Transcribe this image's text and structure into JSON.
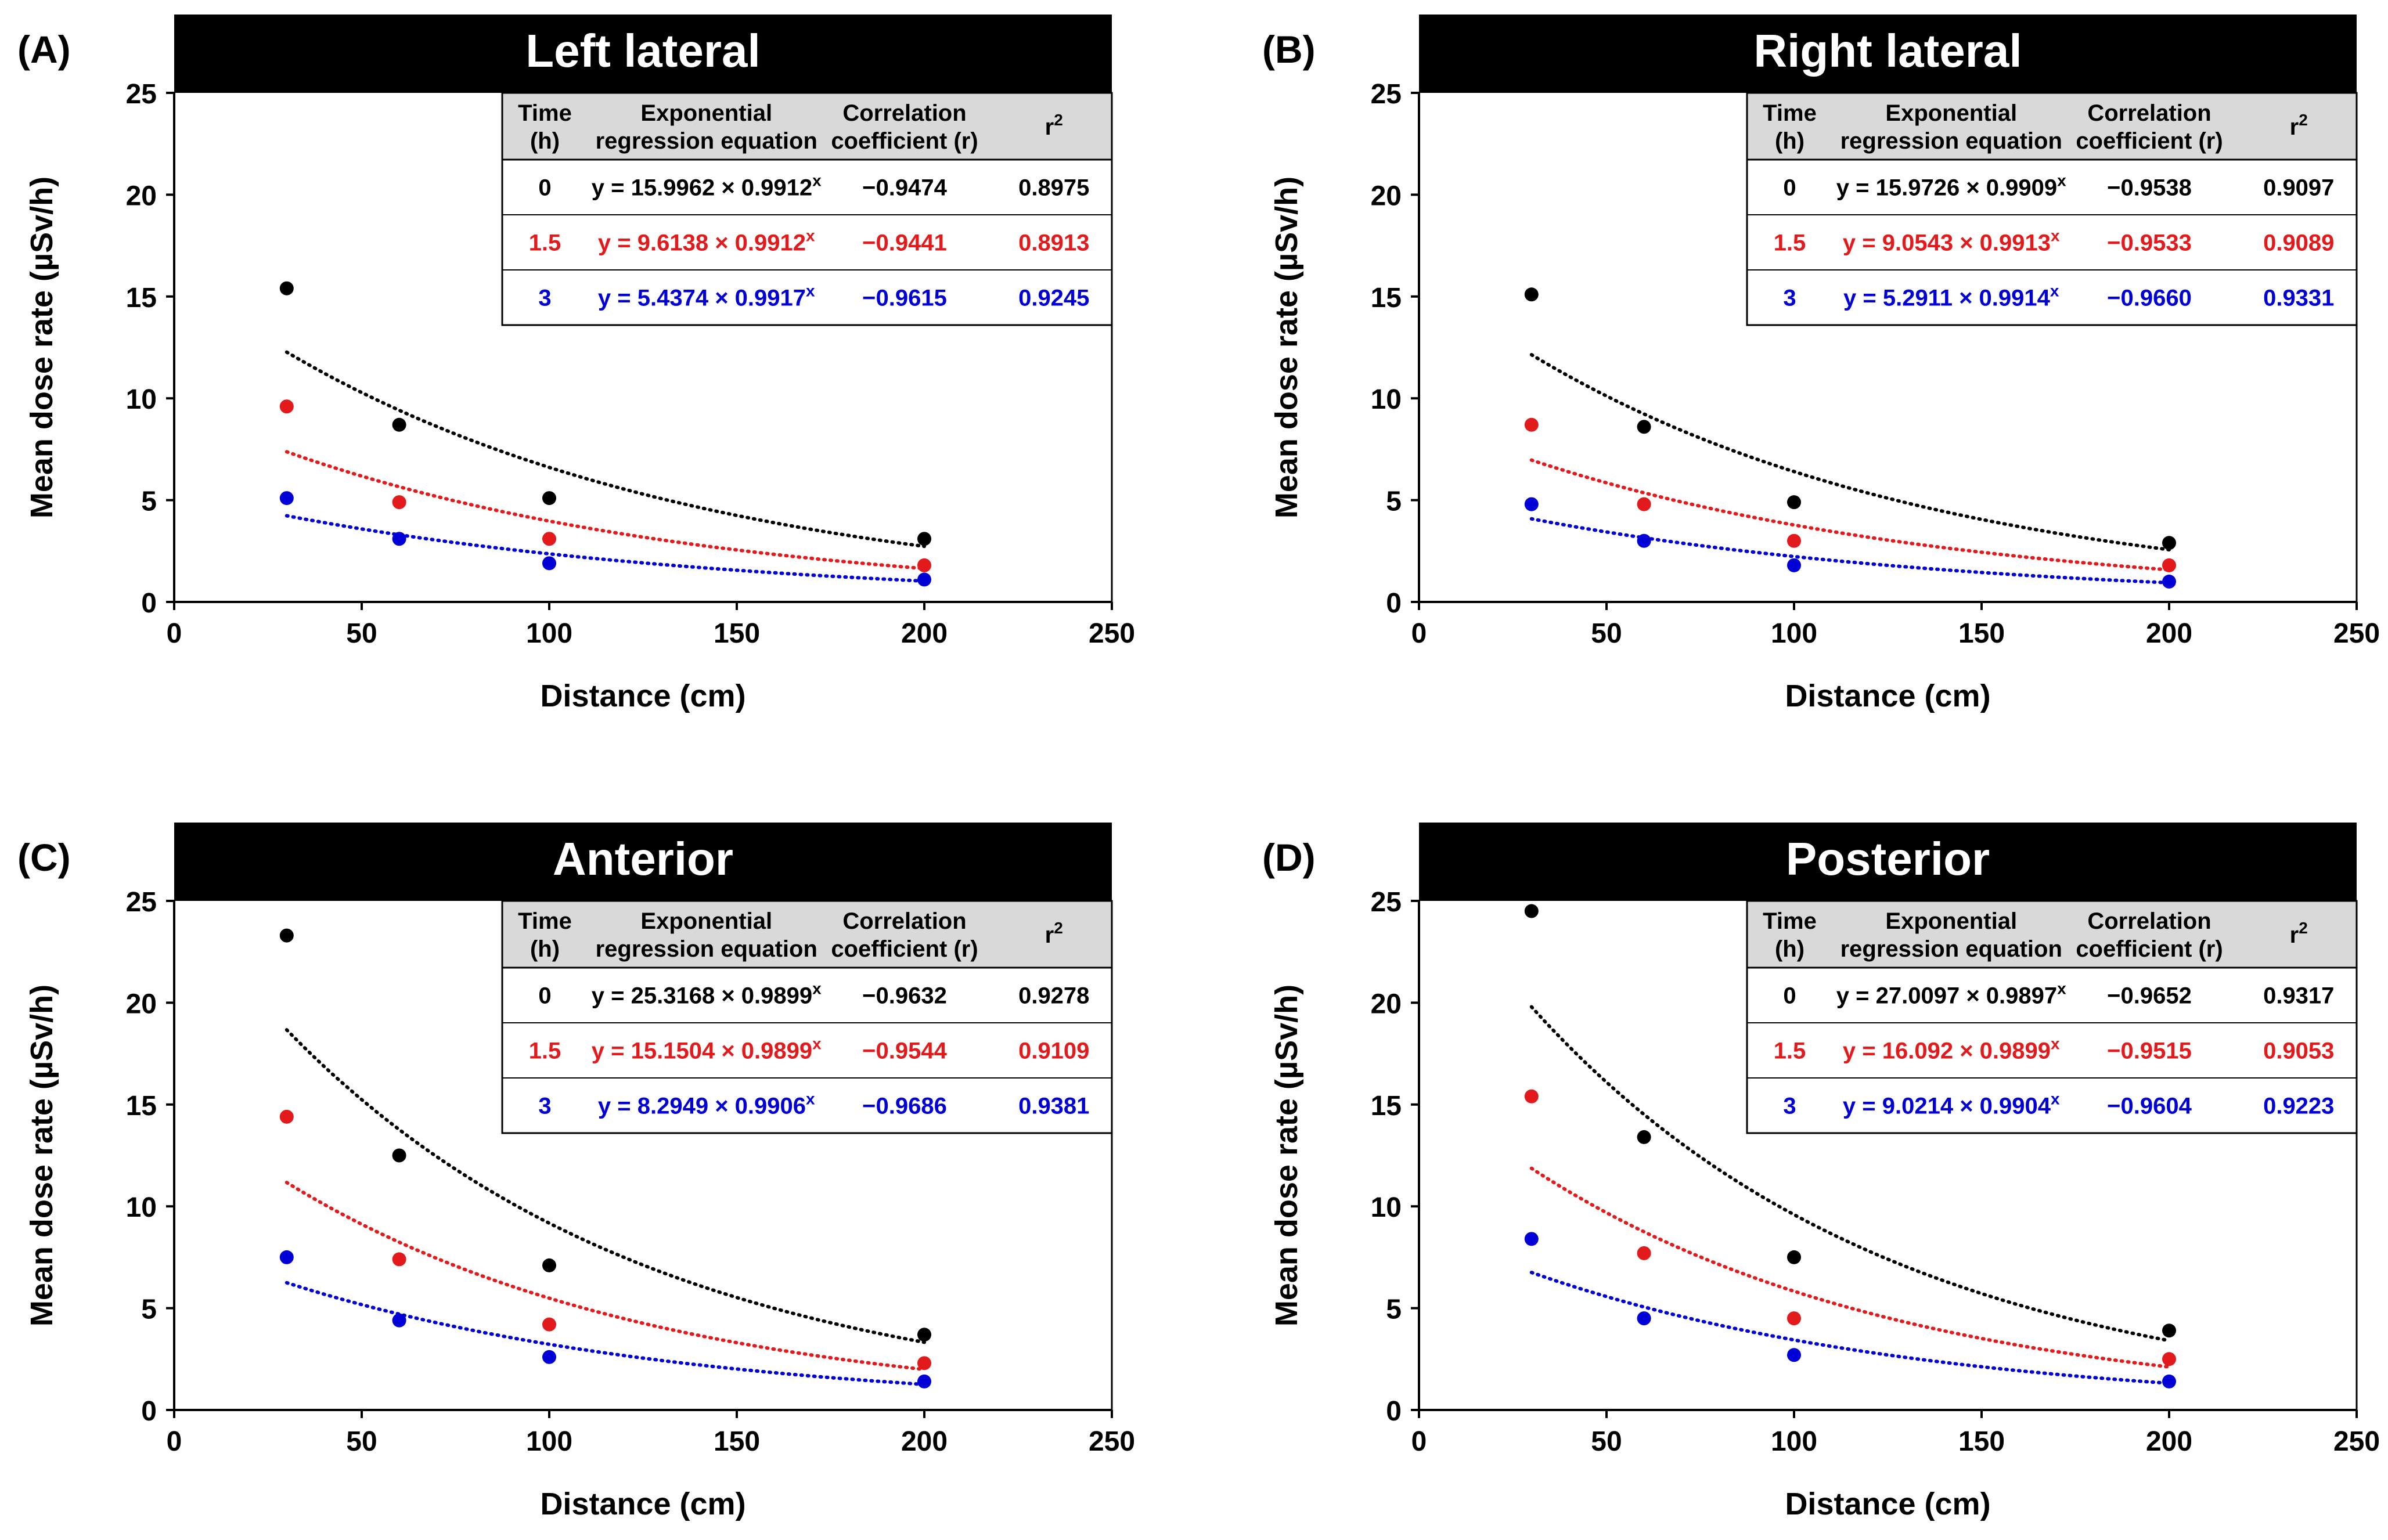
{
  "colors": {
    "t0": "#000000",
    "t1_5": "#e31a1c",
    "t3": "#0000d6",
    "header_bg": "#000000",
    "header_text": "#ffffff",
    "table_head_bg": "#d9d9d9"
  },
  "table_headers": {
    "time_line1": "Time",
    "time_line2": "(h)",
    "eq_line1": "Exponential",
    "eq_line2": "regression equation",
    "corr_line1": "Correlation",
    "corr_line2": "coefficient (r)",
    "r2_base": "r",
    "r2_sup": "2"
  },
  "chart_data": [
    {
      "label": "(A)",
      "title": "Left lateral",
      "type": "scatter",
      "xlabel": "Distance (cm)",
      "ylabel": "Mean dose rate (µSv/h)",
      "xlim": [
        0,
        250
      ],
      "ylim": [
        0,
        25
      ],
      "xticks": [
        "0",
        "50",
        "100",
        "150",
        "200",
        "250"
      ],
      "yticks": [
        "0",
        "5",
        "10",
        "15",
        "20",
        "25"
      ],
      "x": [
        30,
        60,
        100,
        200
      ],
      "series": [
        {
          "name": "0",
          "color": "#000000",
          "values": [
            15.4,
            8.7,
            5.1,
            3.1
          ],
          "fit": {
            "a": 15.9962,
            "b": 0.9912
          },
          "equation_base": "y = 15.9962 × 0.9912",
          "equation_sup": "x",
          "r": "−0.9474",
          "r2": "0.8975"
        },
        {
          "name": "1.5",
          "color": "#e31a1c",
          "values": [
            9.6,
            4.9,
            3.1,
            1.8
          ],
          "fit": {
            "a": 9.6138,
            "b": 0.9912
          },
          "equation_base": "y = 9.6138 × 0.9912",
          "equation_sup": "x",
          "r": "−0.9441",
          "r2": "0.8913"
        },
        {
          "name": "3",
          "color": "#0000d6",
          "values": [
            5.1,
            3.1,
            1.9,
            1.1
          ],
          "fit": {
            "a": 5.4374,
            "b": 0.9917
          },
          "equation_base": "y = 5.4374 × 0.9917",
          "equation_sup": "x",
          "r": "−0.9615",
          "r2": "0.9245"
        }
      ]
    },
    {
      "label": "(B)",
      "title": "Right lateral",
      "type": "scatter",
      "xlabel": "Distance (cm)",
      "ylabel": "Mean dose rate (µSv/h)",
      "xlim": [
        0,
        250
      ],
      "ylim": [
        0,
        25
      ],
      "xticks": [
        "0",
        "50",
        "100",
        "150",
        "200",
        "250"
      ],
      "yticks": [
        "0",
        "5",
        "10",
        "15",
        "20",
        "25"
      ],
      "x": [
        30,
        60,
        100,
        200
      ],
      "series": [
        {
          "name": "0",
          "color": "#000000",
          "values": [
            15.1,
            8.6,
            4.9,
            2.9
          ],
          "fit": {
            "a": 15.9726,
            "b": 0.9909
          },
          "equation_base": "y = 15.9726 × 0.9909",
          "equation_sup": "x",
          "r": "−0.9538",
          "r2": "0.9097"
        },
        {
          "name": "1.5",
          "color": "#e31a1c",
          "values": [
            8.7,
            4.8,
            3.0,
            1.8
          ],
          "fit": {
            "a": 9.0543,
            "b": 0.9913
          },
          "equation_base": "y = 9.0543 × 0.9913",
          "equation_sup": "x",
          "r": "−0.9533",
          "r2": "0.9089"
        },
        {
          "name": "3",
          "color": "#0000d6",
          "values": [
            4.8,
            3.0,
            1.8,
            1.0
          ],
          "fit": {
            "a": 5.2911,
            "b": 0.9914
          },
          "equation_base": "y = 5.2911 × 0.9914",
          "equation_sup": "x",
          "r": "−0.9660",
          "r2": "0.9331"
        }
      ]
    },
    {
      "label": "(C)",
      "title": "Anterior",
      "type": "scatter",
      "xlabel": "Distance (cm)",
      "ylabel": "Mean dose rate (µSv/h)",
      "xlim": [
        0,
        250
      ],
      "ylim": [
        0,
        25
      ],
      "xticks": [
        "0",
        "50",
        "100",
        "150",
        "200",
        "250"
      ],
      "yticks": [
        "0",
        "5",
        "10",
        "15",
        "20",
        "25"
      ],
      "x": [
        30,
        60,
        100,
        200
      ],
      "series": [
        {
          "name": "0",
          "color": "#000000",
          "values": [
            23.3,
            12.5,
            7.1,
            3.7
          ],
          "fit": {
            "a": 25.3168,
            "b": 0.9899
          },
          "equation_base": "y = 25.3168 × 0.9899",
          "equation_sup": "x",
          "r": "−0.9632",
          "r2": "0.9278"
        },
        {
          "name": "1.5",
          "color": "#e31a1c",
          "values": [
            14.4,
            7.4,
            4.2,
            2.3
          ],
          "fit": {
            "a": 15.1504,
            "b": 0.9899
          },
          "equation_base": "y = 15.1504 × 0.9899",
          "equation_sup": "x",
          "r": "−0.9544",
          "r2": "0.9109"
        },
        {
          "name": "3",
          "color": "#0000d6",
          "values": [
            7.5,
            4.4,
            2.6,
            1.4
          ],
          "fit": {
            "a": 8.2949,
            "b": 0.9906
          },
          "equation_base": "y = 8.2949 × 0.9906",
          "equation_sup": "x",
          "r": "−0.9686",
          "r2": "0.9381"
        }
      ]
    },
    {
      "label": "(D)",
      "title": "Posterior",
      "type": "scatter",
      "xlabel": "Distance (cm)",
      "ylabel": "Mean dose rate (µSv/h)",
      "xlim": [
        0,
        250
      ],
      "ylim": [
        0,
        25
      ],
      "xticks": [
        "0",
        "50",
        "100",
        "150",
        "200",
        "250"
      ],
      "yticks": [
        "0",
        "5",
        "10",
        "15",
        "20",
        "25"
      ],
      "x": [
        30,
        60,
        100,
        200
      ],
      "series": [
        {
          "name": "0",
          "color": "#000000",
          "values": [
            24.5,
            13.4,
            7.5,
            3.9
          ],
          "fit": {
            "a": 27.0097,
            "b": 0.9897
          },
          "equation_base": "y = 27.0097 × 0.9897",
          "equation_sup": "x",
          "r": "−0.9652",
          "r2": "0.9317"
        },
        {
          "name": "1.5",
          "color": "#e31a1c",
          "values": [
            15.4,
            7.7,
            4.5,
            2.5
          ],
          "fit": {
            "a": 16.092,
            "b": 0.9899
          },
          "equation_base": "y = 16.092 × 0.9899",
          "equation_sup": "x",
          "r": "−0.9515",
          "r2": "0.9053"
        },
        {
          "name": "3",
          "color": "#0000d6",
          "values": [
            8.4,
            4.5,
            2.7,
            1.4
          ],
          "fit": {
            "a": 9.0214,
            "b": 0.9904
          },
          "equation_base": "y = 9.0214 × 0.9904",
          "equation_sup": "x",
          "r": "−0.9604",
          "r2": "0.9223"
        }
      ]
    }
  ]
}
